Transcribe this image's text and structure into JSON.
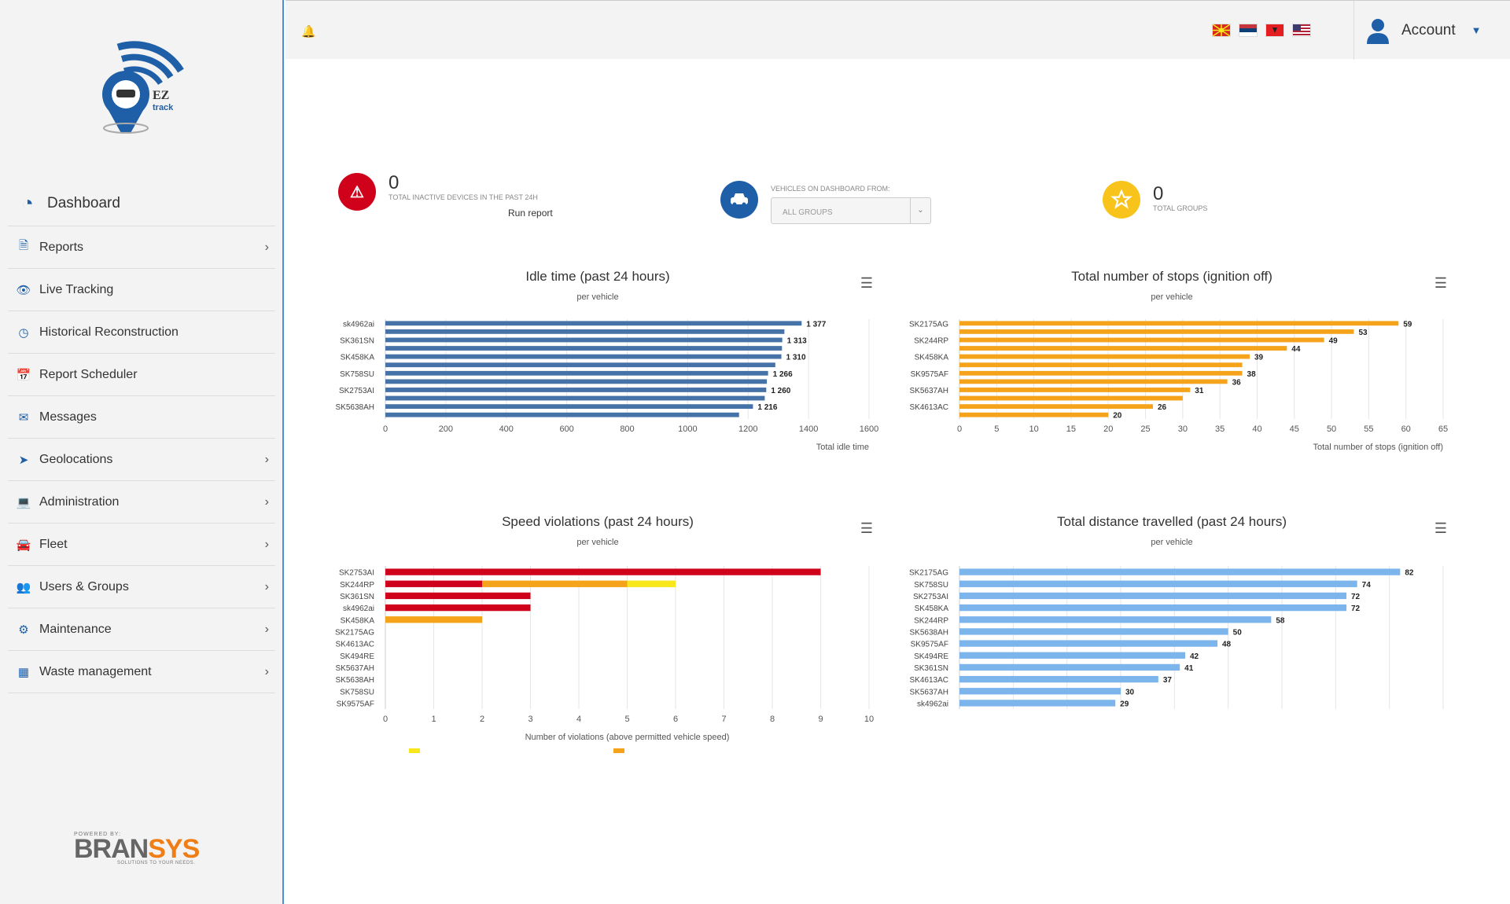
{
  "brand": {
    "logo_text": "EZ to track",
    "powered": "POWERED BY:",
    "name_a": "BRAN",
    "name_b": "SYS",
    "tagline": "SOLUTIONS TO YOUR NEEDS."
  },
  "menu": [
    {
      "label": "Dashboard",
      "icon": "dashboard-icon"
    },
    {
      "label": "Reports",
      "icon": "file-icon",
      "chevron": true
    },
    {
      "label": "Live Tracking",
      "icon": "eye-icon"
    },
    {
      "label": "Historical Reconstruction",
      "icon": "history-icon"
    },
    {
      "label": "Report Scheduler",
      "icon": "calendar-icon"
    },
    {
      "label": "Messages",
      "icon": "envelope-icon"
    },
    {
      "label": "Geolocations",
      "icon": "location-arrow-icon",
      "chevron": true
    },
    {
      "label": "Administration",
      "icon": "laptop-icon",
      "chevron": true
    },
    {
      "label": "Fleet",
      "icon": "car-icon",
      "chevron": true
    },
    {
      "label": "Users & Groups",
      "icon": "users-icon",
      "chevron": true
    },
    {
      "label": "Maintenance",
      "icon": "gear-icon",
      "chevron": true
    },
    {
      "label": "Waste management",
      "icon": "cubes-icon",
      "chevron": true
    }
  ],
  "topbar": {
    "account": "Account",
    "flags": [
      "mk",
      "rs",
      "al",
      "us"
    ]
  },
  "stats": {
    "inactive": {
      "value": "0",
      "label": "TOTAL INACTIVE DEVICES IN THE PAST 24H",
      "link": "Run report"
    },
    "vehicles": {
      "label": "VEHICLES ON DASHBOARD FROM:",
      "select": "ALL GROUPS"
    },
    "groups": {
      "value": "0",
      "label": "TOTAL GROUPS"
    }
  },
  "colors": {
    "idle": "#4572a7",
    "stops": "#f5a31a",
    "distance": "#7cb5ec",
    "red": "#d0021b",
    "orange": "#f5a31a",
    "yellow": "#f8e71c"
  },
  "chart_data": [
    {
      "type": "bar",
      "title": "Idle time (past 24 hours)",
      "subtitle": "per vehicle",
      "xlabel": "Total idle time",
      "xlim": [
        0,
        1600
      ],
      "xticks": [
        0,
        200,
        400,
        600,
        800,
        1000,
        1200,
        1400,
        1600
      ],
      "categories": [
        "sk4962ai",
        "",
        "SK361SN",
        "",
        "SK458KA",
        "",
        "SK758SU",
        "",
        "SK2753AI",
        "",
        "SK5638AH",
        ""
      ],
      "values": [
        1377,
        1320,
        1313,
        1312,
        1310,
        1290,
        1266,
        1262,
        1260,
        1255,
        1216,
        1170
      ],
      "labels": [
        "1 377",
        "",
        "1 313",
        "",
        "1 310",
        "",
        "1 266",
        "",
        "1 260",
        "",
        "1 216",
        ""
      ]
    },
    {
      "type": "bar",
      "title": "Total number of stops (ignition off)",
      "subtitle": "per vehicle",
      "xlabel": "Total number of stops (ignition off)",
      "xlim": [
        0,
        65
      ],
      "xticks": [
        0,
        5,
        10,
        15,
        20,
        25,
        30,
        35,
        40,
        45,
        50,
        55,
        60,
        65
      ],
      "categories": [
        "SK2175AG",
        "",
        "SK244RP",
        "",
        "SK458KA",
        "",
        "SK9575AF",
        "",
        "SK5637AH",
        "",
        "SK4613AC",
        ""
      ],
      "values": [
        59,
        53,
        49,
        44,
        39,
        38,
        38,
        36,
        31,
        30,
        26,
        20
      ],
      "labels": [
        "59",
        "53",
        "49",
        "44",
        "39",
        "",
        "38",
        "36",
        "31",
        "",
        "26",
        "20"
      ]
    },
    {
      "type": "bar",
      "stacked": true,
      "title": "Speed violations (past 24 hours)",
      "subtitle": "per vehicle",
      "xlabel": "Number of violations (above permitted vehicle speed)",
      "xlim": [
        0,
        10
      ],
      "xticks": [
        0,
        1,
        2,
        3,
        4,
        5,
        6,
        7,
        8,
        9,
        10
      ],
      "categories": [
        "SK2753AI",
        "SK244RP",
        "SK361SN",
        "sk4962ai",
        "SK458KA",
        "SK2175AG",
        "SK4613AC",
        "SK494RE",
        "SK5637AH",
        "SK5638AH",
        "SK758SU",
        "SK9575AF"
      ],
      "series": [
        {
          "color": "red",
          "values": [
            9,
            2,
            3,
            3,
            0,
            0,
            0,
            0,
            0,
            0,
            0,
            0
          ]
        },
        {
          "color": "orange",
          "values": [
            0,
            3,
            0,
            0,
            2,
            0,
            0,
            0,
            0,
            0,
            0,
            0
          ]
        },
        {
          "color": "yellow",
          "values": [
            0,
            1,
            0,
            0,
            0,
            0,
            0,
            0,
            0,
            0,
            0,
            0
          ]
        }
      ]
    },
    {
      "type": "bar",
      "title": "Total distance travelled (past 24 hours)",
      "subtitle": "per vehicle",
      "xlim": [
        0,
        90
      ],
      "xticks": [],
      "categories": [
        "SK2175AG",
        "SK758SU",
        "SK2753AI",
        "SK458KA",
        "SK244RP",
        "SK5638AH",
        "SK9575AF",
        "SK494RE",
        "SK361SN",
        "SK4613AC",
        "SK5637AH",
        "sk4962ai"
      ],
      "values": [
        82,
        74,
        72,
        72,
        58,
        50,
        48,
        42,
        41,
        37,
        30,
        29
      ],
      "labels": [
        "82",
        "74",
        "72",
        "72",
        "58",
        "50",
        "48",
        "42",
        "41",
        "37",
        "30",
        "29"
      ]
    }
  ]
}
